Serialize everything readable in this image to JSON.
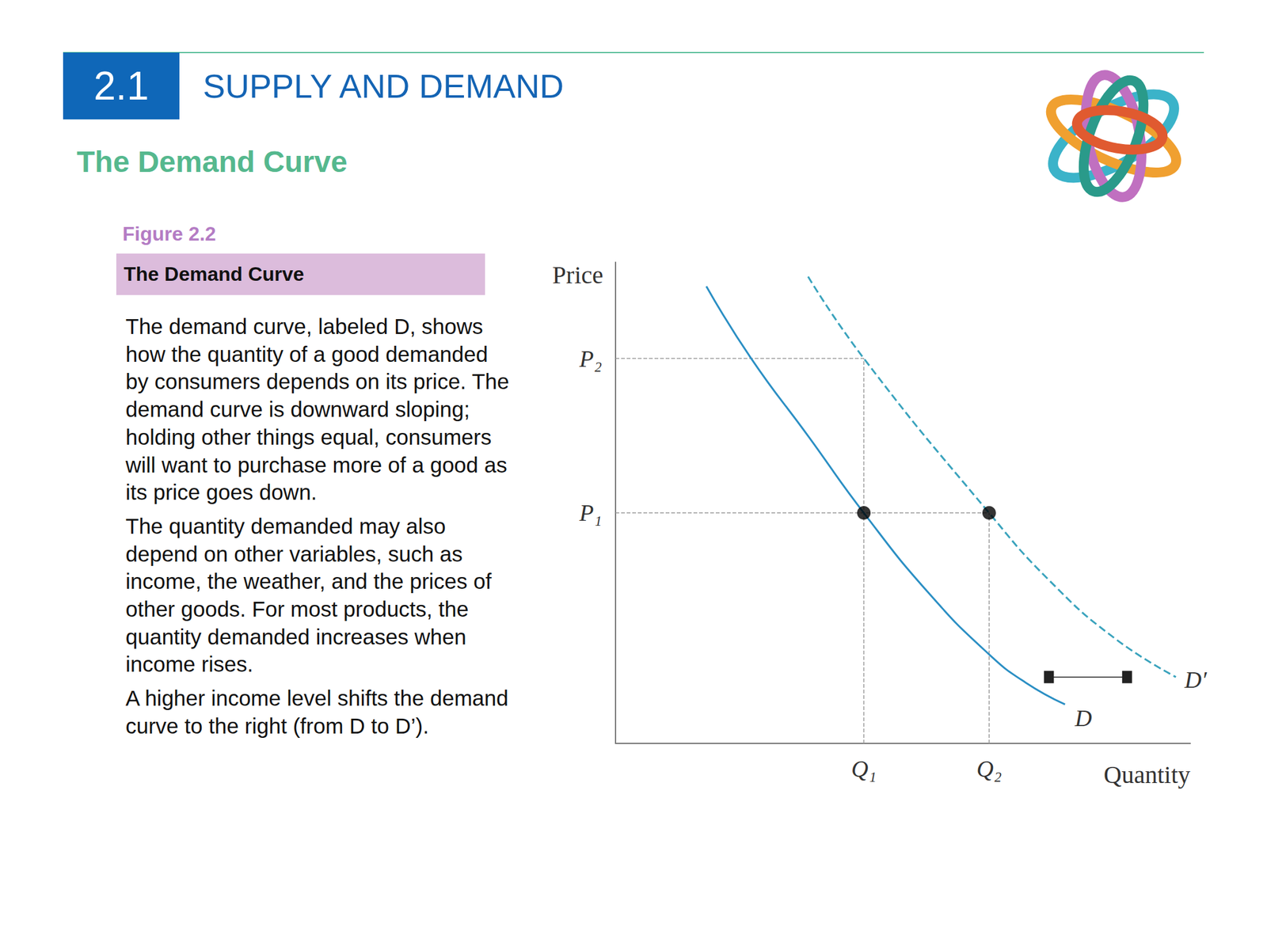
{
  "page": {
    "section_number": "2.1",
    "section_title": "SUPPLY AND DEMAND",
    "heading": "The Demand Curve",
    "figure_label": "Figure 2.2",
    "figure_title": "The Demand Curve",
    "caption": [
      "The demand curve, labeled D, shows how the quantity of a good demanded by consumers depends on its price. The demand curve is downward sloping; holding other things equal, consumers will want to purchase more of a good as its price goes down.",
      "The quantity demanded may also depend on other variables, such as income, the weather, and the prices of other goods. For most products, the quantity demanded increases when income rises.",
      "A higher income level shifts the demand curve to the right (from D to D’)."
    ]
  },
  "chart_data": {
    "type": "line",
    "x_label": "Quantity",
    "y_label": "Price",
    "xlim": [
      0,
      100
    ],
    "ylim": [
      0,
      100
    ],
    "xticks": [
      {
        "value": 43.2,
        "label": "Q₁"
      },
      {
        "value": 65.0,
        "label": "Q₂"
      }
    ],
    "yticks": [
      {
        "value": 47.9,
        "label": "P₁"
      },
      {
        "value": 80.0,
        "label": "P₂"
      }
    ],
    "grid": false,
    "tick_labels": true,
    "series": [
      {
        "name": "D",
        "color": "#2b8fc4",
        "line_style": "solid",
        "x": [
          15.8,
          23.6,
          33.5,
          43.2,
          54.6,
          65.0,
          71.4,
          78.2
        ],
        "values": [
          95.0,
          80.0,
          63.9,
          47.9,
          31.1,
          18.5,
          12.6,
          8.1
        ]
      },
      {
        "name": "D′",
        "color": "#3aa3bd",
        "line_style": "dashed",
        "x": [
          33.5,
          43.2,
          65.0,
          75.7,
          86.9,
          97.5
        ],
        "values": [
          97.0,
          80.0,
          47.9,
          33.6,
          21.8,
          13.8
        ]
      }
    ],
    "points": {
      "x": [
        43.2,
        65.0
      ],
      "y": [
        47.9,
        47.9
      ],
      "color": "#000000"
    },
    "guides": [
      {
        "x": [
          0,
          43.2
        ],
        "y": [
          80.0,
          80.0
        ]
      },
      {
        "x": [
          43.2,
          43.2
        ],
        "y": [
          0,
          80.0
        ]
      },
      {
        "x": [
          0,
          65.0
        ],
        "y": [
          47.9,
          47.9
        ]
      },
      {
        "x": [
          65.0,
          65.0
        ],
        "y": [
          0,
          47.9
        ]
      }
    ],
    "shift_arrow": {
      "x": [
        75.4,
        89.0
      ],
      "y": [
        13.8,
        13.8
      ]
    }
  }
}
